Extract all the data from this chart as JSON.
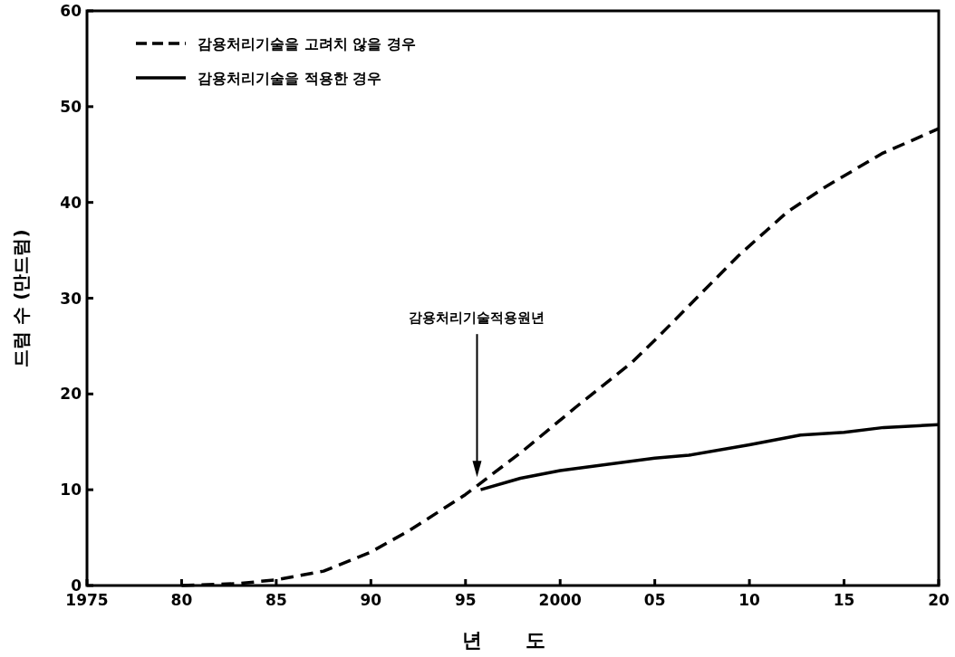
{
  "chart_data": {
    "type": "line",
    "xlabel": "년 도",
    "ylabel": "드럼 수 (만드럼)",
    "xlim": [
      1975,
      2020
    ],
    "ylim": [
      0,
      60
    ],
    "xticks": [
      1975,
      {
        "value": 1980,
        "label": "80"
      },
      {
        "value": 1985,
        "label": "85"
      },
      {
        "value": 1990,
        "label": "90"
      },
      {
        "value": 1995,
        "label": "95"
      },
      2000,
      {
        "value": 2005,
        "label": "05"
      },
      {
        "value": 2010,
        "label": "10"
      },
      {
        "value": 2015,
        "label": "15"
      },
      {
        "value": 2020,
        "label": "20"
      }
    ],
    "yticks": [
      0,
      10,
      20,
      30,
      40,
      50,
      60
    ],
    "legend": "top left",
    "series": [
      {
        "name": "감용처리기술을 고려치 않을 경우",
        "color": "#000000",
        "line_style": "dashed",
        "x": [
          1980,
          1983,
          1985,
          1987.5,
          1990,
          1992,
          1995,
          1998,
          2001,
          2003.8,
          2005.3,
          2009.4,
          2012,
          2014,
          2017,
          2020
        ],
        "values": [
          0,
          0.2,
          0.6,
          1.5,
          3.5,
          5.7,
          9.5,
          14,
          18.9,
          23.3,
          26.2,
          34.4,
          39,
          41.6,
          45.1,
          47.7
        ]
      },
      {
        "name": "감용처리기술을 적용한 경우",
        "color": "#000000",
        "line_style": "solid",
        "x": [
          1995.8,
          1997.9,
          2000,
          2005,
          2006.8,
          2010,
          2012.7,
          2015,
          2017.1,
          2020
        ],
        "values": [
          10,
          11.2,
          12,
          13.3,
          13.6,
          14.7,
          15.7,
          16,
          16.5,
          16.8
        ]
      }
    ],
    "annotations": [
      "감용처리기술적용원년"
    ]
  }
}
